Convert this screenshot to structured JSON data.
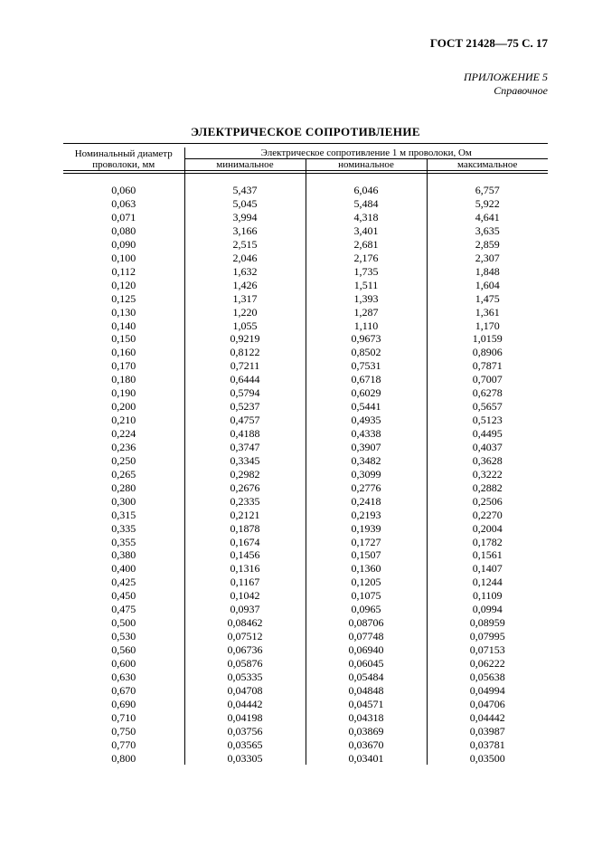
{
  "header": {
    "gost": "ГОСТ 21428—75 С. 17",
    "appendix": "ПРИЛОЖЕНИЕ 5",
    "reference": "Справочное"
  },
  "title": "ЭЛЕКТРИЧЕСКОЕ СОПРОТИВЛЕНИЕ",
  "table": {
    "col_diameter": "Номинальный диаметр проволоки, мм",
    "group_header": "Электрическое сопротивление 1 м проволоки, Ом",
    "col_min": "минимальное",
    "col_nom": "номинальное",
    "col_max": "максимальное",
    "columns": [
      "diam",
      "min",
      "nom",
      "max"
    ],
    "rows": [
      [
        "0,060",
        "5,437",
        "6,046",
        "6,757"
      ],
      [
        "0,063",
        "5,045",
        "5,484",
        "5,922"
      ],
      [
        "0,071",
        "3,994",
        "4,318",
        "4,641"
      ],
      [
        "0,080",
        "3,166",
        "3,401",
        "3,635"
      ],
      [
        "0,090",
        "2,515",
        "2,681",
        "2,859"
      ],
      [
        "0,100",
        "2,046",
        "2,176",
        "2,307"
      ],
      [
        "0,112",
        "1,632",
        "1,735",
        "1,848"
      ],
      [
        "0,120",
        "1,426",
        "1,511",
        "1,604"
      ],
      [
        "0,125",
        "1,317",
        "1,393",
        "1,475"
      ],
      [
        "0,130",
        "1,220",
        "1,287",
        "1,361"
      ],
      [
        "0,140",
        "1,055",
        "1,110",
        "1,170"
      ],
      [
        "0,150",
        "0,9219",
        "0,9673",
        "1,0159"
      ],
      [
        "0,160",
        "0,8122",
        "0,8502",
        "0,8906"
      ],
      [
        "0,170",
        "0,7211",
        "0,7531",
        "0,7871"
      ],
      [
        "0,180",
        "0,6444",
        "0,6718",
        "0,7007"
      ],
      [
        "0,190",
        "0,5794",
        "0,6029",
        "0,6278"
      ],
      [
        "0,200",
        "0,5237",
        "0,5441",
        "0,5657"
      ],
      [
        "0,210",
        "0,4757",
        "0,4935",
        "0,5123"
      ],
      [
        "0,224",
        "0,4188",
        "0,4338",
        "0,4495"
      ],
      [
        "0,236",
        "0,3747",
        "0,3907",
        "0,4037"
      ],
      [
        "0,250",
        "0,3345",
        "0,3482",
        "0,3628"
      ],
      [
        "0,265",
        "0,2982",
        "0,3099",
        "0,3222"
      ],
      [
        "0,280",
        "0,2676",
        "0,2776",
        "0,2882"
      ],
      [
        "0,300",
        "0,2335",
        "0,2418",
        "0,2506"
      ],
      [
        "0,315",
        "0,2121",
        "0,2193",
        "0,2270"
      ],
      [
        "0,335",
        "0,1878",
        "0,1939",
        "0,2004"
      ],
      [
        "0,355",
        "0,1674",
        "0,1727",
        "0,1782"
      ],
      [
        "0,380",
        "0,1456",
        "0,1507",
        "0,1561"
      ],
      [
        "0,400",
        "0,1316",
        "0,1360",
        "0,1407"
      ],
      [
        "0,425",
        "0,1167",
        "0,1205",
        "0,1244"
      ],
      [
        "0,450",
        "0,1042",
        "0,1075",
        "0,1109"
      ],
      [
        "0,475",
        "0,0937",
        "0,0965",
        "0,0994"
      ],
      [
        "0,500",
        "0,08462",
        "0,08706",
        "0,08959"
      ],
      [
        "0,530",
        "0,07512",
        "0,07748",
        "0,07995"
      ],
      [
        "0,560",
        "0,06736",
        "0,06940",
        "0,07153"
      ],
      [
        "0,600",
        "0,05876",
        "0,06045",
        "0,06222"
      ],
      [
        "0,630",
        "0,05335",
        "0,05484",
        "0,05638"
      ],
      [
        "0,670",
        "0,04708",
        "0,04848",
        "0,04994"
      ],
      [
        "0,690",
        "0,04442",
        "0,04571",
        "0,04706"
      ],
      [
        "0,710",
        "0,04198",
        "0,04318",
        "0,04442"
      ],
      [
        "0,750",
        "0,03756",
        "0,03869",
        "0,03987"
      ],
      [
        "0,770",
        "0,03565",
        "0,03670",
        "0,03781"
      ],
      [
        "0,800",
        "0,03305",
        "0,03401",
        "0,03500"
      ]
    ]
  },
  "style": {
    "background_color": "#ffffff",
    "text_color": "#000000",
    "font_family": "Times New Roman",
    "title_fontsize": 13,
    "body_fontsize": 12,
    "header_fontsize": 11,
    "border_color": "#000000"
  }
}
